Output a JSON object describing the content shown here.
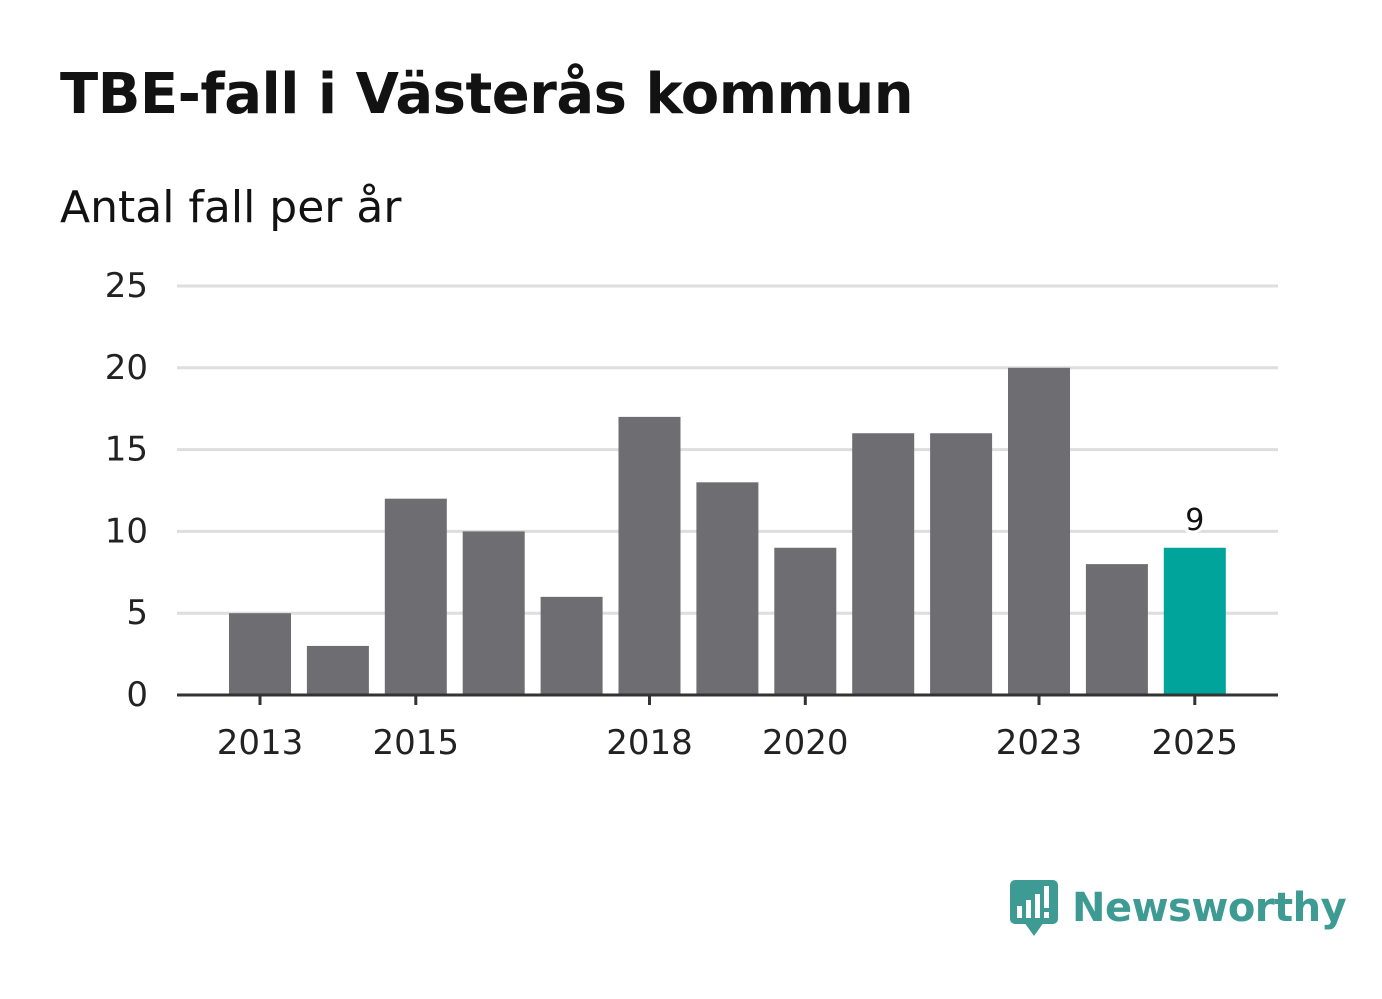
{
  "header": {
    "title": "TBE-fall i Västerås kommun",
    "subtitle": "Antal fall per år"
  },
  "brand": {
    "name": "Newsworthy",
    "icon": "newsworthy-logo-icon",
    "color": "#3e9b94"
  },
  "colors": {
    "bar": "#6e6d72",
    "highlight": "#00a49a",
    "grid": "#dedede",
    "axis": "#333333"
  },
  "chart_data": {
    "type": "bar",
    "title": "TBE-fall i Västerås kommun",
    "subtitle": "Antal fall per år",
    "xlabel": "",
    "ylabel": "",
    "categories": [
      "2013",
      "2014",
      "2015",
      "2016",
      "2017",
      "2018",
      "2019",
      "2020",
      "2021",
      "2022",
      "2023",
      "2024",
      "2025"
    ],
    "values": [
      5,
      3,
      12,
      10,
      6,
      17,
      13,
      9,
      16,
      16,
      20,
      8,
      9
    ],
    "ylim": [
      0,
      25
    ],
    "yticks": [
      0,
      5,
      10,
      15,
      20,
      25
    ],
    "xtick_labels": [
      "2013",
      "2015",
      "2018",
      "2020",
      "2023",
      "2025"
    ],
    "highlight_category": "2025",
    "data_labels": [
      {
        "category": "2025",
        "text": "9"
      }
    ],
    "grid": true,
    "legend": "none"
  }
}
